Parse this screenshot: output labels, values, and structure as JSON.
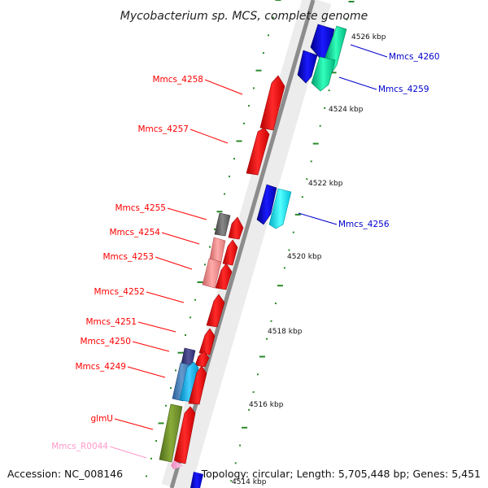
{
  "title": "Mycobacterium sp. MCS, complete genome",
  "ruler": {
    "unit_labels": [
      "4526 kbp",
      "4524 kbp",
      "4522 kbp",
      "4520 kbp",
      "4518 kbp",
      "4516 kbp",
      "4514 kbp"
    ],
    "tick_color": "#2a8a2a"
  },
  "genes": {
    "reverse_strand": [
      {
        "label": "Mmcs_4258",
        "color": "#ff0000"
      },
      {
        "label": "Mmcs_4257",
        "color": "#ff0000"
      },
      {
        "label": "Mmcs_4255",
        "color": "#ff0000"
      },
      {
        "label": "Mmcs_4254",
        "color": "#ff0000"
      },
      {
        "label": "Mmcs_4253",
        "color": "#ff0000"
      },
      {
        "label": "Mmcs_4252",
        "color": "#ff0000"
      },
      {
        "label": "Mmcs_4251",
        "color": "#ff0000"
      },
      {
        "label": "Mmcs_4250",
        "color": "#ff0000"
      },
      {
        "label": "Mmcs_4249",
        "color": "#ff0000"
      },
      {
        "label": "glmU",
        "color": "#ff0000"
      },
      {
        "label": "Mmcs_R0044",
        "color": "#ff99cc"
      }
    ],
    "forward_strand": [
      {
        "label": "Mmcs_4260",
        "color": "#0000cc"
      },
      {
        "label": "Mmcs_4259",
        "color": "#0000cc"
      },
      {
        "label": "Mmcs_4256",
        "color": "#0000cc"
      }
    ]
  },
  "footer": {
    "accession": "Accession: NC_008146",
    "summary": "Topology: circular; Length: 5,705,448 bp; Genes: 5,451"
  }
}
